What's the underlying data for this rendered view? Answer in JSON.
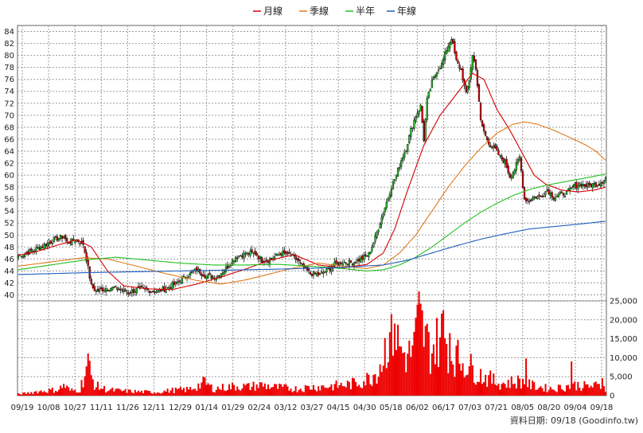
{
  "legend": [
    {
      "label": "月線",
      "color": "#d40000"
    },
    {
      "label": "季線",
      "color": "#e07a1a"
    },
    {
      "label": "半年",
      "color": "#22c022"
    },
    {
      "label": "年線",
      "color": "#1f5fbf"
    }
  ],
  "footer": "資料日期: 09/18  (Goodinfo.tw)",
  "colors": {
    "up": "#22c022",
    "down": "#d40000",
    "volume": "#ee0000",
    "grid": "#9a9a9a"
  },
  "chart_data": [
    {
      "type": "candlestick",
      "x_ticks": [
        "09/19",
        "10/08",
        "10/27",
        "11/11",
        "11/26",
        "12/11",
        "12/29",
        "01/14",
        "01/29",
        "02/24",
        "03/12",
        "03/27",
        "04/15",
        "04/30",
        "05/18",
        "06/02",
        "06/17",
        "07/03",
        "07/21",
        "08/05",
        "08/20",
        "09/04",
        "09/18"
      ],
      "ylim": [
        39,
        85
      ],
      "y_ticks": [
        40,
        42,
        44,
        46,
        48,
        50,
        52,
        54,
        56,
        58,
        60,
        62,
        64,
        66,
        68,
        70,
        72,
        74,
        76,
        78,
        80,
        82,
        84
      ],
      "grid": true,
      "price_anchors": [
        [
          0,
          46.5
        ],
        [
          8,
          47.3
        ],
        [
          15,
          48.2
        ],
        [
          22,
          49.2
        ],
        [
          28,
          49.8
        ],
        [
          30,
          48.8
        ],
        [
          36,
          49.2
        ],
        [
          40,
          48.5
        ],
        [
          42,
          46.0
        ],
        [
          45,
          41.5
        ],
        [
          48,
          40.6
        ],
        [
          55,
          41.2
        ],
        [
          62,
          41.0
        ],
        [
          68,
          40.4
        ],
        [
          74,
          41.0
        ],
        [
          80,
          40.8
        ],
        [
          86,
          40.6
        ],
        [
          92,
          41.2
        ],
        [
          98,
          42.0
        ],
        [
          104,
          43.2
        ],
        [
          110,
          44.2
        ],
        [
          116,
          43.1
        ],
        [
          122,
          43.0
        ],
        [
          128,
          44.4
        ],
        [
          134,
          46.4
        ],
        [
          140,
          46.9
        ],
        [
          146,
          47.0
        ],
        [
          150,
          45.8
        ],
        [
          156,
          46.0
        ],
        [
          162,
          47.0
        ],
        [
          168,
          46.6
        ],
        [
          172,
          45.8
        ],
        [
          175,
          44.8
        ],
        [
          180,
          43.5
        ],
        [
          186,
          43.4
        ],
        [
          190,
          44.0
        ],
        [
          194,
          45.0
        ],
        [
          200,
          45.5
        ],
        [
          206,
          45.4
        ],
        [
          212,
          46.1
        ],
        [
          216,
          46.8
        ],
        [
          220,
          49.5
        ],
        [
          224,
          53.0
        ],
        [
          227,
          55.5
        ],
        [
          230,
          58.0
        ],
        [
          233,
          60.0
        ],
        [
          236,
          62.5
        ],
        [
          239,
          64.5
        ],
        [
          242,
          67.5
        ],
        [
          245,
          70.0
        ],
        [
          248,
          71.5
        ],
        [
          250,
          66.0
        ],
        [
          252,
          72.5
        ],
        [
          255,
          75.5
        ],
        [
          258,
          77.5
        ],
        [
          261,
          78.5
        ],
        [
          264,
          81.0
        ],
        [
          267,
          83.0
        ],
        [
          270,
          79.0
        ],
        [
          273,
          77.5
        ],
        [
          276,
          73.5
        ],
        [
          278,
          76.0
        ],
        [
          280,
          80.0
        ],
        [
          282,
          78.0
        ],
        [
          285,
          69.0
        ],
        [
          288,
          66.5
        ],
        [
          291,
          65.0
        ],
        [
          294,
          64.3
        ],
        [
          297,
          63.0
        ],
        [
          300,
          62.2
        ],
        [
          303,
          59.8
        ],
        [
          306,
          61.0
        ],
        [
          309,
          63.0
        ],
        [
          312,
          56.0
        ],
        [
          315,
          55.8
        ],
        [
          318,
          56.4
        ],
        [
          322,
          56.4
        ],
        [
          326,
          57.6
        ],
        [
          330,
          56.3
        ],
        [
          334,
          56.8
        ],
        [
          338,
          57.0
        ],
        [
          342,
          58.0
        ],
        [
          346,
          58.6
        ],
        [
          350,
          58.2
        ],
        [
          354,
          58.4
        ],
        [
          358,
          58.6
        ],
        [
          362,
          59.6
        ]
      ],
      "moving_averages": [
        {
          "name": "月線",
          "points": [
            [
              0,
              46.6
            ],
            [
              12,
              47.3
            ],
            [
              24,
              48.3
            ],
            [
              36,
              49.2
            ],
            [
              45,
              48.0
            ],
            [
              55,
              44.0
            ],
            [
              65,
              41.5
            ],
            [
              80,
              41.0
            ],
            [
              95,
              40.9
            ],
            [
              110,
              41.8
            ],
            [
              125,
              43.0
            ],
            [
              140,
              44.3
            ],
            [
              155,
              45.8
            ],
            [
              170,
              46.7
            ],
            [
              185,
              45.0
            ],
            [
              200,
              44.5
            ],
            [
              215,
              45.1
            ],
            [
              225,
              47.0
            ],
            [
              232,
              51.0
            ],
            [
              240,
              57.5
            ],
            [
              250,
              65.0
            ],
            [
              260,
              70.0
            ],
            [
              270,
              73.5
            ],
            [
              280,
              77.0
            ],
            [
              287,
              76.0
            ],
            [
              295,
              71.0
            ],
            [
              303,
              67.5
            ],
            [
              310,
              64.0
            ],
            [
              318,
              60.0
            ],
            [
              325,
              58.5
            ],
            [
              335,
              57.5
            ],
            [
              345,
              57.2
            ],
            [
              355,
              57.5
            ],
            [
              362,
              58.0
            ]
          ]
        },
        {
          "name": "季線",
          "points": [
            [
              0,
              44.8
            ],
            [
              20,
              45.5
            ],
            [
              40,
              46.2
            ],
            [
              55,
              46.0
            ],
            [
              70,
              45.0
            ],
            [
              90,
              43.6
            ],
            [
              110,
              42.4
            ],
            [
              125,
              41.8
            ],
            [
              140,
              42.5
            ],
            [
              155,
              43.5
            ],
            [
              170,
              44.5
            ],
            [
              185,
              45.3
            ],
            [
              200,
              44.8
            ],
            [
              215,
              44.4
            ],
            [
              225,
              45.0
            ],
            [
              235,
              47.0
            ],
            [
              245,
              50.0
            ],
            [
              255,
              54.0
            ],
            [
              265,
              58.0
            ],
            [
              275,
              61.5
            ],
            [
              285,
              64.5
            ],
            [
              295,
              67.0
            ],
            [
              305,
              68.5
            ],
            [
              312,
              68.9
            ],
            [
              320,
              68.5
            ],
            [
              330,
              67.5
            ],
            [
              340,
              66.3
            ],
            [
              350,
              65.0
            ],
            [
              356,
              64.0
            ],
            [
              362,
              62.5
            ]
          ]
        },
        {
          "name": "半年",
          "points": [
            [
              0,
              44.2
            ],
            [
              20,
              45.0
            ],
            [
              40,
              45.8
            ],
            [
              60,
              46.3
            ],
            [
              80,
              45.8
            ],
            [
              100,
              45.3
            ],
            [
              120,
              45.0
            ],
            [
              140,
              45.0
            ],
            [
              160,
              45.1
            ],
            [
              180,
              44.8
            ],
            [
              200,
              44.4
            ],
            [
              215,
              44.0
            ],
            [
              225,
              44.2
            ],
            [
              235,
              45.0
            ],
            [
              245,
              46.3
            ],
            [
              255,
              48.0
            ],
            [
              265,
              50.0
            ],
            [
              275,
              52.0
            ],
            [
              285,
              53.8
            ],
            [
              295,
              55.3
            ],
            [
              305,
              56.6
            ],
            [
              315,
              57.6
            ],
            [
              325,
              58.3
            ],
            [
              335,
              58.8
            ],
            [
              345,
              59.3
            ],
            [
              355,
              59.8
            ],
            [
              362,
              60.2
            ]
          ]
        },
        {
          "name": "年線",
          "points": [
            [
              0,
              43.4
            ],
            [
              40,
              43.7
            ],
            [
              80,
              43.9
            ],
            [
              120,
              44.1
            ],
            [
              160,
              44.3
            ],
            [
              200,
              44.6
            ],
            [
              225,
              45.0
            ],
            [
              240,
              45.8
            ],
            [
              255,
              47.0
            ],
            [
              270,
              48.2
            ],
            [
              285,
              49.3
            ],
            [
              300,
              50.2
            ],
            [
              315,
              51.0
            ],
            [
              330,
              51.4
            ],
            [
              345,
              51.8
            ],
            [
              362,
              52.3
            ]
          ]
        }
      ]
    },
    {
      "type": "bar",
      "ylim": [
        0,
        25000
      ],
      "y_ticks": [
        "0",
        "5,000",
        "10,000",
        "15,000",
        "20,000",
        "25,000"
      ],
      "volume_anchors": [
        [
          0,
          400
        ],
        [
          5,
          600
        ],
        [
          10,
          1000
        ],
        [
          15,
          1200
        ],
        [
          20,
          1400
        ],
        [
          25,
          1600
        ],
        [
          28,
          2800
        ],
        [
          32,
          1300
        ],
        [
          38,
          1500
        ],
        [
          43,
          9000
        ],
        [
          44,
          6000
        ],
        [
          46,
          4000
        ],
        [
          48,
          2500
        ],
        [
          55,
          1500
        ],
        [
          65,
          1200
        ],
        [
          75,
          1000
        ],
        [
          85,
          900
        ],
        [
          95,
          1400
        ],
        [
          105,
          1600
        ],
        [
          112,
          2800
        ],
        [
          115,
          3500
        ],
        [
          120,
          1800
        ],
        [
          128,
          2200
        ],
        [
          135,
          2500
        ],
        [
          142,
          2300
        ],
        [
          150,
          2800
        ],
        [
          158,
          2200
        ],
        [
          165,
          2000
        ],
        [
          172,
          1800
        ],
        [
          180,
          2200
        ],
        [
          188,
          2400
        ],
        [
          196,
          2600
        ],
        [
          205,
          3000
        ],
        [
          212,
          3800
        ],
        [
          216,
          4500
        ],
        [
          220,
          6000
        ],
        [
          224,
          9000
        ],
        [
          227,
          14000
        ],
        [
          230,
          18000
        ],
        [
          233,
          15000
        ],
        [
          236,
          12000
        ],
        [
          240,
          10000
        ],
        [
          244,
          13000
        ],
        [
          247,
          20000
        ],
        [
          250,
          16000
        ],
        [
          254,
          12000
        ],
        [
          258,
          14000
        ],
        [
          262,
          17000
        ],
        [
          265,
          13000
        ],
        [
          268,
          11000
        ],
        [
          272,
          9500
        ],
        [
          276,
          8500
        ],
        [
          280,
          7000
        ],
        [
          285,
          5500
        ],
        [
          290,
          4500
        ],
        [
          295,
          3500
        ],
        [
          300,
          3200
        ],
        [
          305,
          3600
        ],
        [
          310,
          3800
        ],
        [
          315,
          2800
        ],
        [
          320,
          2400
        ],
        [
          325,
          2000
        ],
        [
          330,
          1800
        ],
        [
          335,
          2200
        ],
        [
          340,
          2600
        ],
        [
          345,
          2800
        ],
        [
          350,
          2400
        ],
        [
          355,
          2600
        ],
        [
          362,
          2200
        ]
      ],
      "volume_spikes": [
        [
          44,
          9200
        ],
        [
          114,
          5000
        ],
        [
          230,
          21500
        ],
        [
          232,
          19000
        ],
        [
          247,
          27500
        ],
        [
          262,
          22500
        ],
        [
          266,
          16500
        ],
        [
          313,
          9800
        ],
        [
          341,
          9000
        ],
        [
          360,
          4600
        ]
      ]
    }
  ]
}
